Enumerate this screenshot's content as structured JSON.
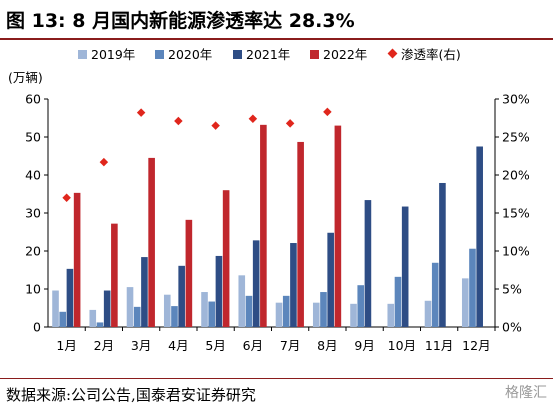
{
  "figure": {
    "title": "图 13:  8 月国内新能源渗透率达 28.3%",
    "source": "数据来源:公司公告,国泰君安证券研究",
    "watermark": "格隆汇"
  },
  "colors": {
    "s2019": "#9fb6d8",
    "s2020": "#5c86bc",
    "s2021": "#2e4d85",
    "s2022": "#c0272d",
    "penetration": "#e0261c",
    "title_rule": "#8a1c1c"
  },
  "chart_data": {
    "type": "bar",
    "title": "图 13:  8 月国内新能源渗透率达 28.3%",
    "ylabel": "(万辆)",
    "ylim": [
      0,
      60
    ],
    "yticks": [
      0,
      10,
      20,
      30,
      40,
      50,
      60
    ],
    "y2lim": [
      0,
      0.3
    ],
    "y2ticks": [
      "0%",
      "5%",
      "10%",
      "15%",
      "20%",
      "25%",
      "30%"
    ],
    "grid": false,
    "legend_position": "top",
    "categories": [
      "1月",
      "2月",
      "3月",
      "4月",
      "5月",
      "6月",
      "7月",
      "8月",
      "9月",
      "10月",
      "11月",
      "12月"
    ],
    "series": [
      {
        "name": "2019年",
        "type": "bar",
        "axis": "left",
        "color_key": "s2019",
        "values": [
          9.6,
          4.5,
          10.5,
          8.5,
          9.2,
          13.6,
          6.4,
          6.4,
          6.1,
          6.1,
          6.9,
          12.8
        ]
      },
      {
        "name": "2020年",
        "type": "bar",
        "axis": "left",
        "color_key": "s2020",
        "values": [
          4.0,
          1.2,
          5.3,
          5.5,
          6.7,
          8.2,
          8.2,
          9.2,
          11.0,
          13.2,
          16.9,
          20.6
        ]
      },
      {
        "name": "2021年",
        "type": "bar",
        "axis": "left",
        "color_key": "s2021",
        "values": [
          15.3,
          9.6,
          18.4,
          16.1,
          18.7,
          22.8,
          22.1,
          24.8,
          33.4,
          31.7,
          37.9,
          47.5
        ]
      },
      {
        "name": "2022年",
        "type": "bar",
        "axis": "left",
        "color_key": "s2022",
        "values": [
          35.3,
          27.2,
          44.5,
          28.2,
          36.0,
          53.2,
          48.7,
          53.0,
          null,
          null,
          null,
          null
        ]
      },
      {
        "name": "渗透率(右)",
        "type": "scatter",
        "axis": "right",
        "color_key": "penetration",
        "values": [
          0.17,
          0.217,
          0.282,
          0.271,
          0.265,
          0.274,
          0.268,
          0.283,
          null,
          null,
          null,
          null
        ]
      }
    ]
  }
}
